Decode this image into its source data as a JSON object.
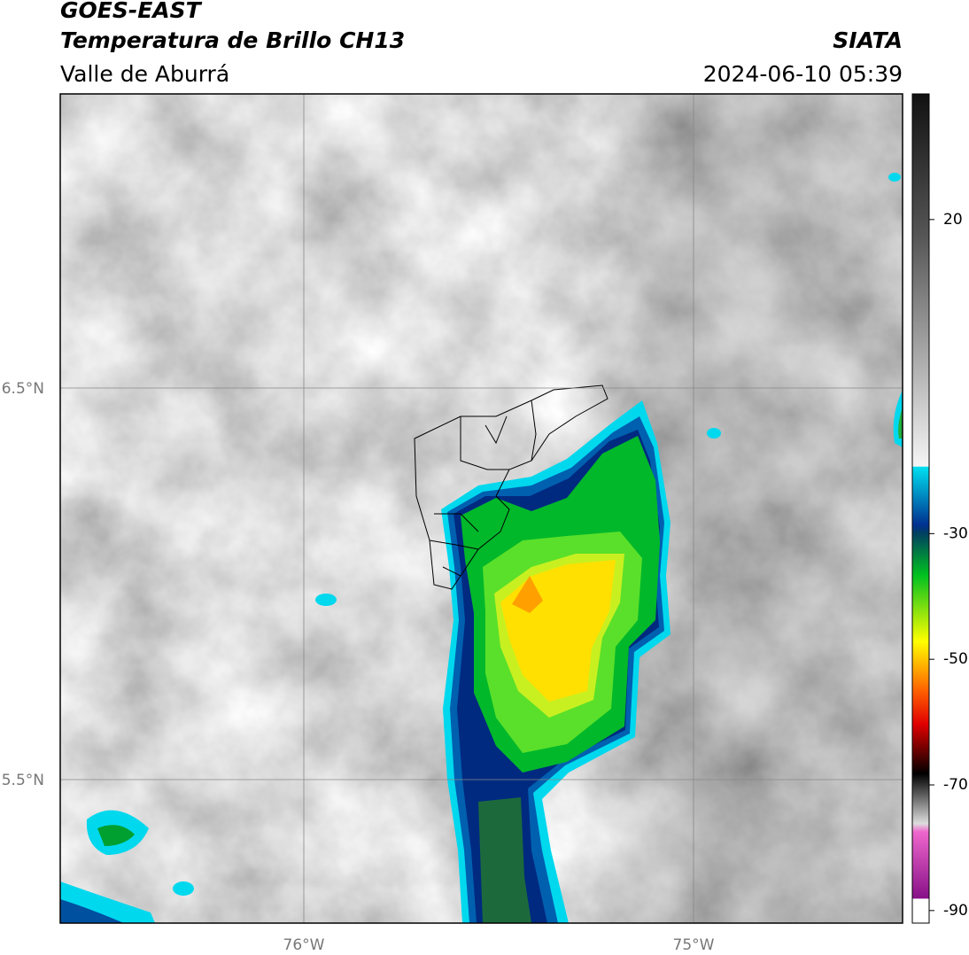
{
  "header": {
    "title": "GOES-EAST",
    "subtitle": "Temperatura de Brillo CH13",
    "region": "Valle de Aburrá",
    "source": "SIATA",
    "timestamp": "2024-06-10 05:39"
  },
  "map": {
    "lat_labels": [
      "6.5°N",
      "5.5°N"
    ],
    "lon_labels": [
      "76°W",
      "75°W"
    ]
  },
  "colorbar": {
    "limits": [
      -92,
      40
    ],
    "ticks": [
      20,
      -30,
      -50,
      -70,
      -90
    ]
  }
}
